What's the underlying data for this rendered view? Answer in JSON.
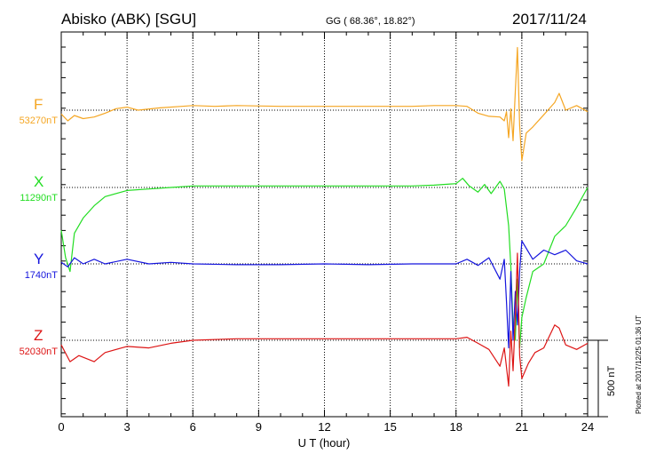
{
  "header": {
    "station": "Abisko (ABK)  [SGU]",
    "coords": "GG ( 68.36°,  18.82°)",
    "date": "2017/11/24"
  },
  "side_note": "Plotted at 2017/12/25 01:36 UT",
  "scale_label": "500 nT",
  "chart_data": {
    "type": "line",
    "xlabel": "U T (hour)",
    "xlim": [
      0,
      24
    ],
    "x_ticks": [
      "0",
      "3",
      "6",
      "9",
      "12",
      "15",
      "18",
      "21",
      "24"
    ],
    "grid": "dotted vertical every 3 h, dotted baseline per trace",
    "scale_bar_nT": 500,
    "series": [
      {
        "name": "F",
        "baseline_label": "53270nT",
        "color": "#f5a623",
        "points": [
          [
            0,
            -25
          ],
          [
            0.3,
            -70
          ],
          [
            0.6,
            -35
          ],
          [
            1.0,
            -55
          ],
          [
            1.5,
            -45
          ],
          [
            2.0,
            -20
          ],
          [
            2.5,
            10
          ],
          [
            3.0,
            20
          ],
          [
            3.5,
            0
          ],
          [
            4.5,
            15
          ],
          [
            5.5,
            25
          ],
          [
            6.0,
            30
          ],
          [
            7,
            25
          ],
          [
            8,
            30
          ],
          [
            10,
            25
          ],
          [
            12,
            25
          ],
          [
            14,
            25
          ],
          [
            16,
            25
          ],
          [
            17,
            30
          ],
          [
            18,
            30
          ],
          [
            18.5,
            25
          ],
          [
            19.0,
            -20
          ],
          [
            19.5,
            -40
          ],
          [
            20.0,
            -45
          ],
          [
            20.2,
            -70
          ],
          [
            20.3,
            -10
          ],
          [
            20.4,
            -180
          ],
          [
            20.5,
            10
          ],
          [
            20.6,
            -200
          ],
          [
            20.7,
            120
          ],
          [
            20.8,
            410
          ],
          [
            20.9,
            -100
          ],
          [
            21.0,
            -330
          ],
          [
            21.2,
            -150
          ],
          [
            21.5,
            -110
          ],
          [
            22.0,
            -30
          ],
          [
            22.5,
            50
          ],
          [
            22.7,
            110
          ],
          [
            23.0,
            0
          ],
          [
            23.5,
            30
          ],
          [
            24,
            -10
          ]
        ]
      },
      {
        "name": "X",
        "baseline_label": "11290nT",
        "color": "#22dd22",
        "points": [
          [
            0,
            -280
          ],
          [
            0.2,
            -460
          ],
          [
            0.4,
            -550
          ],
          [
            0.6,
            -300
          ],
          [
            1.0,
            -200
          ],
          [
            1.5,
            -120
          ],
          [
            2.0,
            -60
          ],
          [
            3.0,
            -20
          ],
          [
            4.0,
            -10
          ],
          [
            5.0,
            0
          ],
          [
            6.0,
            10
          ],
          [
            8,
            10
          ],
          [
            10,
            10
          ],
          [
            12,
            10
          ],
          [
            14,
            10
          ],
          [
            16,
            10
          ],
          [
            17,
            15
          ],
          [
            18,
            25
          ],
          [
            18.3,
            60
          ],
          [
            18.6,
            10
          ],
          [
            19.0,
            -30
          ],
          [
            19.3,
            20
          ],
          [
            19.6,
            -40
          ],
          [
            20.0,
            40
          ],
          [
            20.2,
            -10
          ],
          [
            20.4,
            -250
          ],
          [
            20.5,
            -520
          ],
          [
            20.6,
            -900
          ],
          [
            20.7,
            -1000
          ],
          [
            20.8,
            -600
          ],
          [
            20.9,
            -1050
          ],
          [
            21.0,
            -850
          ],
          [
            21.2,
            -720
          ],
          [
            21.5,
            -550
          ],
          [
            22.0,
            -500
          ],
          [
            22.5,
            -320
          ],
          [
            23.0,
            -250
          ],
          [
            23.5,
            -130
          ],
          [
            24,
            0
          ]
        ]
      },
      {
        "name": "Y",
        "baseline_label": "1740nT",
        "color": "#1515dd",
        "points": [
          [
            0,
            10
          ],
          [
            0.3,
            -20
          ],
          [
            0.6,
            40
          ],
          [
            1.0,
            0
          ],
          [
            1.5,
            30
          ],
          [
            2.0,
            0
          ],
          [
            3.0,
            30
          ],
          [
            4.0,
            0
          ],
          [
            5.0,
            10
          ],
          [
            6.0,
            0
          ],
          [
            8,
            -5
          ],
          [
            10,
            -5
          ],
          [
            12,
            0
          ],
          [
            14,
            -5
          ],
          [
            16,
            0
          ],
          [
            18,
            0
          ],
          [
            18.5,
            30
          ],
          [
            19.0,
            -10
          ],
          [
            19.5,
            40
          ],
          [
            20.0,
            -100
          ],
          [
            20.2,
            30
          ],
          [
            20.3,
            -250
          ],
          [
            20.4,
            -550
          ],
          [
            20.5,
            -50
          ],
          [
            20.6,
            -500
          ],
          [
            20.7,
            -180
          ],
          [
            20.8,
            -400
          ],
          [
            20.9,
            -50
          ],
          [
            21.0,
            150
          ],
          [
            21.5,
            30
          ],
          [
            22.0,
            90
          ],
          [
            22.5,
            60
          ],
          [
            23.0,
            90
          ],
          [
            23.5,
            20
          ],
          [
            24,
            0
          ]
        ]
      },
      {
        "name": "Z",
        "baseline_label": "52030nT",
        "color": "#dd1515",
        "points": [
          [
            0,
            -30
          ],
          [
            0.4,
            -140
          ],
          [
            0.8,
            -100
          ],
          [
            1.5,
            -140
          ],
          [
            2.0,
            -80
          ],
          [
            3.0,
            -40
          ],
          [
            4.0,
            -50
          ],
          [
            5.0,
            -20
          ],
          [
            6.0,
            0
          ],
          [
            8,
            10
          ],
          [
            10,
            10
          ],
          [
            12,
            10
          ],
          [
            14,
            10
          ],
          [
            16,
            10
          ],
          [
            18,
            10
          ],
          [
            18.5,
            20
          ],
          [
            19.0,
            -20
          ],
          [
            19.5,
            -60
          ],
          [
            20.0,
            -170
          ],
          [
            20.2,
            -50
          ],
          [
            20.4,
            -300
          ],
          [
            20.5,
            60
          ],
          [
            20.6,
            -200
          ],
          [
            20.7,
            150
          ],
          [
            20.8,
            570
          ],
          [
            20.9,
            -100
          ],
          [
            21.0,
            -250
          ],
          [
            21.3,
            -150
          ],
          [
            21.6,
            -80
          ],
          [
            22.0,
            -50
          ],
          [
            22.5,
            100
          ],
          [
            22.7,
            80
          ],
          [
            23.0,
            -30
          ],
          [
            23.5,
            -60
          ],
          [
            24,
            -20
          ]
        ]
      }
    ]
  }
}
